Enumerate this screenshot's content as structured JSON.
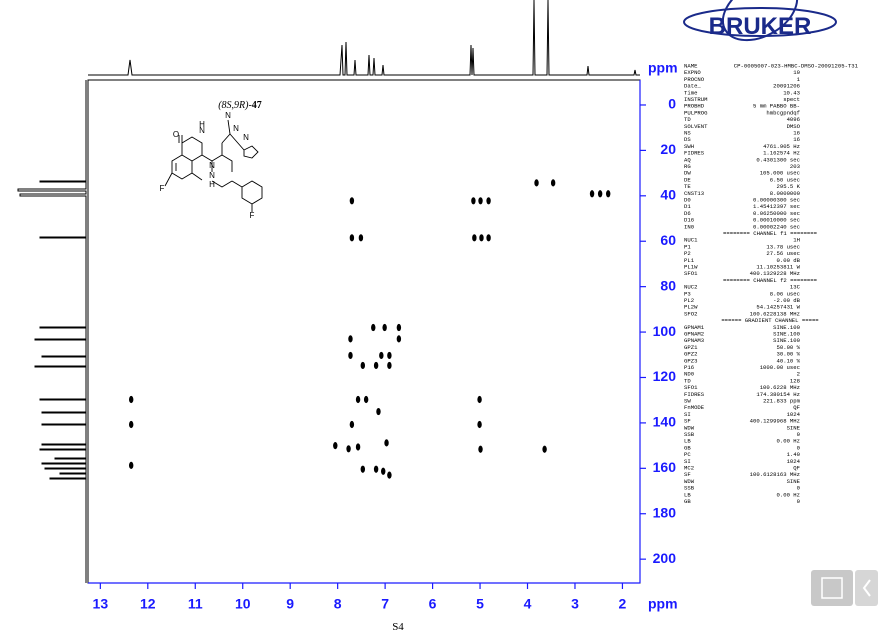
{
  "chart_data": {
    "type": "scatter",
    "x": [
      7.7,
      7.7,
      7.51,
      5.14,
      4.99,
      4.82,
      5.12,
      4.97,
      4.82,
      3.81,
      3.46,
      2.64,
      2.47,
      2.3,
      7.25,
      7.01,
      6.71,
      7.73,
      6.71,
      7.73,
      7.08,
      6.91,
      7.47,
      7.19,
      6.91,
      12.35,
      7.57,
      7.4,
      7.14,
      12.35,
      7.7,
      5.01,
      5.01,
      8.05,
      7.77,
      7.57,
      6.97,
      4.99,
      3.64,
      12.35,
      7.47,
      7.19,
      7.04,
      6.91
    ],
    "values": [
      42.2,
      58.5,
      58.5,
      42.2,
      42.2,
      42.2,
      58.5,
      58.5,
      58.5,
      34.3,
      34.3,
      39.1,
      39.1,
      39.1,
      98.0,
      98.0,
      98.0,
      103.0,
      103.0,
      110.3,
      110.3,
      110.3,
      114.7,
      114.7,
      114.7,
      129.7,
      129.7,
      129.7,
      135.0,
      140.7,
      140.7,
      140.7,
      129.7,
      150.0,
      151.4,
      150.6,
      148.8,
      151.6,
      151.6,
      158.7,
      160.4,
      160.4,
      161.3,
      163.0
    ],
    "color": "#000000",
    "xlim": [
      13.26,
      1.63
    ],
    "ylim": [
      -11,
      210.5
    ],
    "xticks": [
      13,
      12,
      11,
      10,
      9,
      8,
      7,
      6,
      5,
      4,
      3,
      2
    ],
    "yticks": [
      0,
      20,
      40,
      60,
      80,
      100,
      120,
      140,
      160,
      180,
      200
    ],
    "x_label": "ppm",
    "y_label": "ppm",
    "axis_color": "#1a1aff"
  },
  "structure": {
    "compound_name": "(8S,9R)-",
    "compound_number": "47",
    "atoms": [
      "O",
      "N",
      "H",
      "N",
      "N",
      "N",
      "N",
      "F",
      "N",
      "H",
      "F"
    ]
  },
  "logo": "BRUKER",
  "page_number": "S4",
  "params": [
    {
      "name": "NAME",
      "value": "CP-0005007-023-HMBC-DMSO-20091205-T31"
    },
    {
      "name": "EXPNO",
      "value": "10"
    },
    {
      "name": "PROCNO",
      "value": "1"
    },
    {
      "name": "Date_",
      "value": "20091206"
    },
    {
      "name": "Time",
      "value": "10.43"
    },
    {
      "name": "INSTRUM",
      "value": "spect"
    },
    {
      "name": "PROBHD",
      "value": "5 mm PABBO BB-"
    },
    {
      "name": "PULPROG",
      "value": "hmbcgpndqf"
    },
    {
      "name": "TD",
      "value": "4096"
    },
    {
      "name": "SOLVENT",
      "value": "DMSO"
    },
    {
      "name": "NS",
      "value": "16"
    },
    {
      "name": "DS",
      "value": "16"
    },
    {
      "name": "SWH",
      "value": "4761.905 Hz"
    },
    {
      "name": "FIDRES",
      "value": "1.162574 Hz"
    },
    {
      "name": "AQ",
      "value": "0.4301300 sec"
    },
    {
      "name": "RG",
      "value": "203"
    },
    {
      "name": "DW",
      "value": "105.000 usec"
    },
    {
      "name": "DE",
      "value": "6.50 usec"
    },
    {
      "name": "TE",
      "value": "295.5 K"
    },
    {
      "name": "CNST13",
      "value": "8.0000000"
    },
    {
      "name": "D0",
      "value": "0.00000300 sec"
    },
    {
      "name": "D1",
      "value": "1.45412397 sec"
    },
    {
      "name": "D6",
      "value": "0.06250000 sec"
    },
    {
      "name": "D16",
      "value": "0.00010000 sec"
    },
    {
      "name": "IN0",
      "value": "0.00002240 sec"
    },
    {
      "header": "======== CHANNEL f1 ========"
    },
    {
      "name": "NUC1",
      "value": "1H"
    },
    {
      "name": "P1",
      "value": "13.78 usec"
    },
    {
      "name": "P2",
      "value": "27.56 usec"
    },
    {
      "name": "PL1",
      "value": "0.00 dB"
    },
    {
      "name": "PL1W",
      "value": "11.10253811 W"
    },
    {
      "name": "SFO1",
      "value": "400.1329228 MHz"
    },
    {
      "header": "======== CHANNEL f2 ========"
    },
    {
      "name": "NUC2",
      "value": "13C"
    },
    {
      "name": "P3",
      "value": "8.06 usec"
    },
    {
      "name": "PL2",
      "value": "-2.00 dB"
    },
    {
      "name": "PL2W",
      "value": "54.14257431 W"
    },
    {
      "name": "SFO2",
      "value": "100.6228138 MHz"
    },
    {
      "header": "====== GRADIENT CHANNEL ====="
    },
    {
      "name": "GPNAM1",
      "value": "SINE.100"
    },
    {
      "name": "GPNAM2",
      "value": "SINE.100"
    },
    {
      "name": "GPNAM3",
      "value": "SINE.100"
    },
    {
      "name": "GPZ1",
      "value": "50.00 %"
    },
    {
      "name": "GPZ2",
      "value": "30.00 %"
    },
    {
      "name": "GPZ3",
      "value": "40.10 %"
    },
    {
      "name": "P16",
      "value": "1000.00 usec"
    },
    {
      "name": "ND0",
      "value": "2"
    },
    {
      "name": "TD",
      "value": "128"
    },
    {
      "name": "SFO1",
      "value": "100.6228 MHz"
    },
    {
      "name": "FIDRES",
      "value": "174.380154 Hz"
    },
    {
      "name": "SW",
      "value": "221.833 ppm"
    },
    {
      "name": "FnMODE",
      "value": "QF"
    },
    {
      "name": "SI",
      "value": "1024"
    },
    {
      "name": "SF",
      "value": "400.1299968 MHz"
    },
    {
      "name": "WDW",
      "value": "SINE"
    },
    {
      "name": "SSB",
      "value": "0"
    },
    {
      "name": "LB",
      "value": "0.00 Hz"
    },
    {
      "name": "GB",
      "value": "0"
    },
    {
      "name": "PC",
      "value": "1.40"
    },
    {
      "name": "SI",
      "value": "1024"
    },
    {
      "name": "MC2",
      "value": "QF"
    },
    {
      "name": "SF",
      "value": "100.6128163 MHz"
    },
    {
      "name": "WDW",
      "value": "SINE"
    },
    {
      "name": "SSB",
      "value": "0"
    },
    {
      "name": "LB",
      "value": "0.00 Hz"
    },
    {
      "name": "GB",
      "value": "0"
    }
  ]
}
